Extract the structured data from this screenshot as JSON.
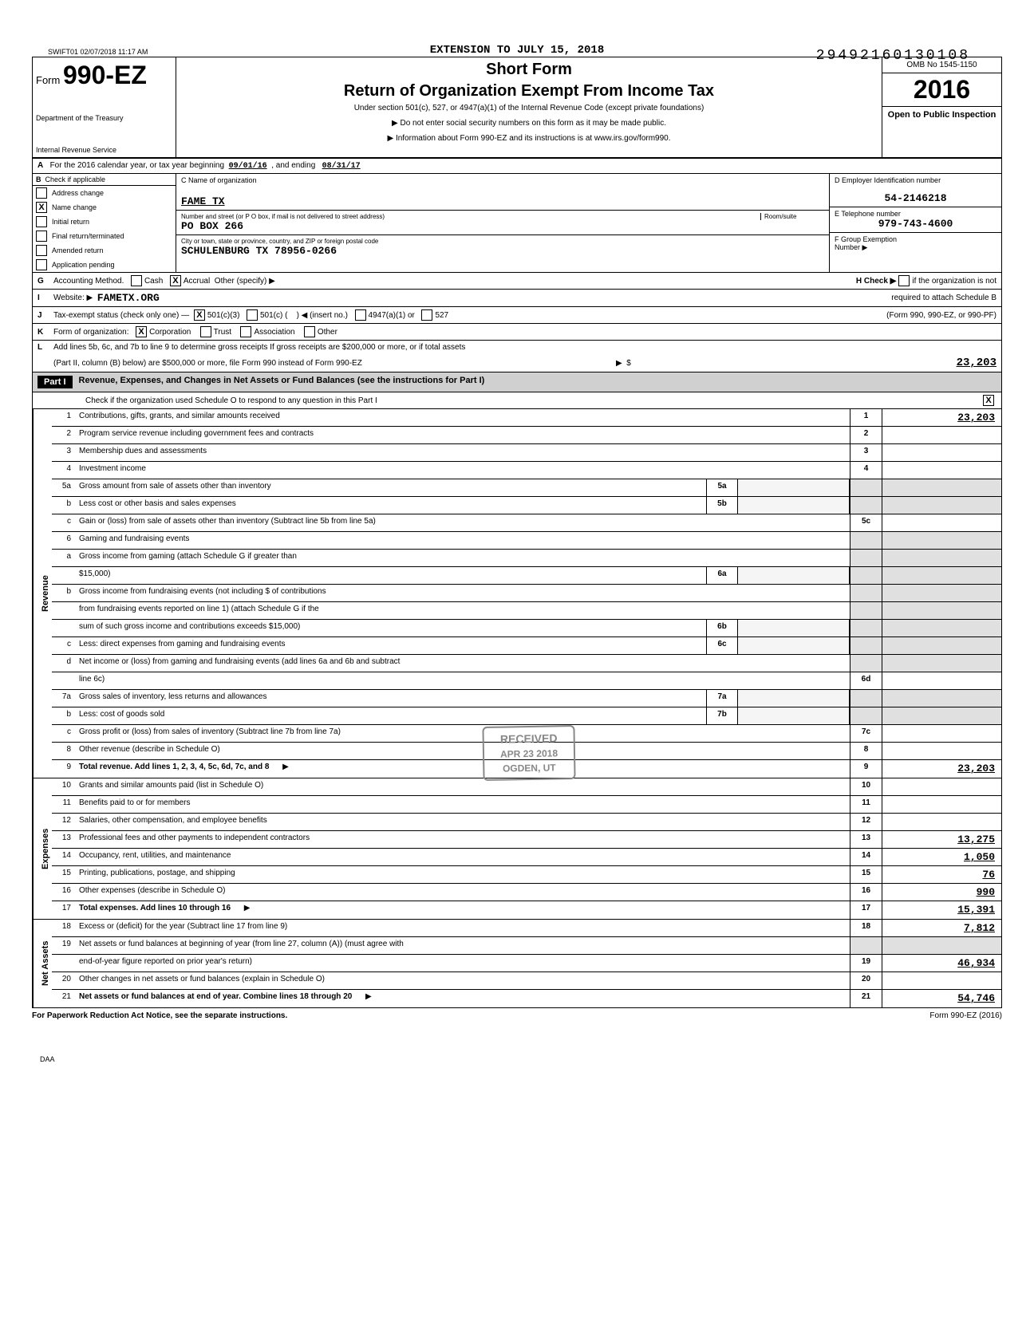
{
  "header": {
    "stamp": "SWIFT01 02/07/2018 11:17 AM",
    "doc_number": "29492160130108",
    "extension": "EXTENSION TO JULY 15, 2018"
  },
  "form": {
    "prefix": "Form",
    "number": "990-EZ",
    "short": "Short Form",
    "title": "Return of Organization Exempt From Income Tax",
    "subtitle": "Under section 501(c), 527, or 4947(a)(1) of the Internal Revenue Code (except private foundations)",
    "arrow1": "▶ Do not enter social security numbers on this form as it may be made public.",
    "arrow2": "▶ Information about Form 990-EZ and its instructions is at www.irs.gov/form990.",
    "dept": "Department of the Treasury",
    "irs": "Internal Revenue Service",
    "omb": "OMB No 1545-1150",
    "year": "2016",
    "inspection": "Open to Public Inspection"
  },
  "rowA": {
    "text": "For the 2016 calendar year, or tax year beginning",
    "begin": "09/01/16",
    "mid": ", and ending",
    "end": "08/31/17"
  },
  "sectionB": {
    "header": "Check if applicable",
    "items": [
      "Address change",
      "Name change",
      "Initial return",
      "Final return/terminated",
      "Amended return",
      "Application pending"
    ],
    "checked": [
      false,
      true,
      false,
      false,
      false,
      false
    ]
  },
  "sectionC": {
    "name_label": "C  Name of organization",
    "name": "FAME TX",
    "addr_label": "Number and street (or P O box, if mail is not delivered to street address)",
    "room_label": "Room/suite",
    "addr": "PO BOX 266",
    "city_label": "City or town, state or province, country, and ZIP or foreign postal code",
    "city": "SCHULENBURG          TX 78956-0266"
  },
  "sectionD": {
    "ein_label": "D  Employer Identification number",
    "ein": "54-2146218",
    "tel_label": "E  Telephone number",
    "tel": "979-743-4600",
    "grp_label": "F  Group Exemption",
    "grp_label2": "Number  ▶"
  },
  "rowG": {
    "letter": "G",
    "text": "Accounting Method.",
    "cash": "Cash",
    "accrual": "Accrual",
    "other": "Other (specify) ▶",
    "h_text": "H  Check ▶",
    "h_text2": "if the organization is not"
  },
  "rowI": {
    "letter": "I",
    "text": "Website: ▶",
    "value": "FAMETX.ORG",
    "h_text": "required to attach Schedule B"
  },
  "rowJ": {
    "letter": "J",
    "text": "Tax-exempt status (check only one) —",
    "opts": [
      "501(c)(3)",
      "501(c) (",
      ") ◀ (insert no.)",
      "4947(a)(1) or",
      "527"
    ],
    "h_text": "(Form 990, 990-EZ, or 990-PF)"
  },
  "rowK": {
    "letter": "K",
    "text": "Form of organization:",
    "opts": [
      "Corporation",
      "Trust",
      "Association",
      "Other"
    ]
  },
  "rowL": {
    "letter": "L",
    "text1": "Add lines 5b, 6c, and 7b to line 9 to determine gross receipts  If gross receipts are $200,000 or more, or if total assets",
    "text2": "(Part II, column (B) below) are $500,000 or more, file Form 990 instead of Form 990-EZ",
    "amt": "23,203"
  },
  "part1": {
    "label": "Part I",
    "title": "Revenue, Expenses, and Changes in Net Assets or Fund Balances (see the instructions for Part I)",
    "check": "Check if the organization used Schedule O to respond to any question in this Part I"
  },
  "sections": {
    "revenue": "Revenue",
    "expenses": "Expenses",
    "netassets": "Net Assets"
  },
  "lines": [
    {
      "n": "1",
      "d": "Contributions, gifts, grants, and similar amounts received",
      "r": "1",
      "a": "23,203"
    },
    {
      "n": "2",
      "d": "Program service revenue including government fees and contracts",
      "r": "2",
      "a": ""
    },
    {
      "n": "3",
      "d": "Membership dues and assessments",
      "r": "3",
      "a": ""
    },
    {
      "n": "4",
      "d": "Investment income",
      "r": "4",
      "a": ""
    },
    {
      "n": "5a",
      "d": "Gross amount from sale of assets other than inventory",
      "m": "5a",
      "mv": ""
    },
    {
      "n": "b",
      "d": "Less  cost or other basis and sales expenses",
      "m": "5b",
      "mv": ""
    },
    {
      "n": "c",
      "d": "Gain or (loss) from sale of assets other than inventory (Subtract line 5b from line 5a)",
      "r": "5c",
      "a": ""
    },
    {
      "n": "6",
      "d": "Gaming and fundraising events"
    },
    {
      "n": "a",
      "d": "Gross income from gaming (attach Schedule G if greater than"
    },
    {
      "n": "",
      "d": "$15,000)",
      "m": "6a",
      "mv": ""
    },
    {
      "n": "b",
      "d": "Gross income from fundraising events (not including  $                              of contributions"
    },
    {
      "n": "",
      "d": "from fundraising events reported on line 1) (attach Schedule G if the"
    },
    {
      "n": "",
      "d": "sum of such gross income and contributions exceeds $15,000)",
      "m": "6b",
      "mv": ""
    },
    {
      "n": "c",
      "d": "Less: direct expenses from gaming and fundraising events",
      "m": "6c",
      "mv": ""
    },
    {
      "n": "d",
      "d": "Net income or (loss) from gaming and fundraising events (add lines 6a and 6b and subtract"
    },
    {
      "n": "",
      "d": "line 6c)",
      "r": "6d",
      "a": ""
    },
    {
      "n": "7a",
      "d": "Gross sales of inventory, less returns and allowances",
      "m": "7a",
      "mv": ""
    },
    {
      "n": "b",
      "d": "Less: cost of goods sold",
      "m": "7b",
      "mv": ""
    },
    {
      "n": "c",
      "d": "Gross profit or (loss) from sales of inventory (Subtract line 7b from line 7a)",
      "r": "7c",
      "a": ""
    },
    {
      "n": "8",
      "d": "Other revenue (describe in Schedule O)",
      "r": "8",
      "a": ""
    },
    {
      "n": "9",
      "d": "Total revenue. Add lines 1, 2, 3, 4, 5c, 6d, 7c, and 8",
      "r": "9",
      "a": "23,203",
      "arrow": true
    },
    {
      "n": "10",
      "d": "Grants and similar amounts paid (list in Schedule O)",
      "r": "10",
      "a": ""
    },
    {
      "n": "11",
      "d": "Benefits paid to or for members",
      "r": "11",
      "a": ""
    },
    {
      "n": "12",
      "d": "Salaries, other compensation, and employee benefits",
      "r": "12",
      "a": ""
    },
    {
      "n": "13",
      "d": "Professional fees and other payments to independent contractors",
      "r": "13",
      "a": "13,275"
    },
    {
      "n": "14",
      "d": "Occupancy, rent, utilities, and maintenance",
      "r": "14",
      "a": "1,050"
    },
    {
      "n": "15",
      "d": "Printing, publications, postage, and shipping",
      "r": "15",
      "a": "76"
    },
    {
      "n": "16",
      "d": "Other expenses (describe in Schedule O)",
      "r": "16",
      "a": "990"
    },
    {
      "n": "17",
      "d": "Total expenses. Add lines 10 through 16",
      "r": "17",
      "a": "15,391",
      "arrow": true
    },
    {
      "n": "18",
      "d": "Excess or (deficit) for the year (Subtract line 17 from line 9)",
      "r": "18",
      "a": "7,812"
    },
    {
      "n": "19",
      "d": "Net assets or fund balances at beginning of year (from line 27, column (A)) (must agree with"
    },
    {
      "n": "",
      "d": "end-of-year figure reported on prior year's return)",
      "r": "19",
      "a": "46,934"
    },
    {
      "n": "20",
      "d": "Other changes in net assets or fund balances (explain in Schedule O)",
      "r": "20",
      "a": ""
    },
    {
      "n": "21",
      "d": "Net assets or fund balances at end of year. Combine lines 18 through 20",
      "r": "21",
      "a": "54,746",
      "arrow": true
    }
  ],
  "footer": {
    "left": "For Paperwork Reduction Act Notice, see the separate instructions.",
    "right": "Form 990-EZ (2016)",
    "daa": "DAA"
  },
  "stamps": {
    "received": "RECEIVED",
    "date": "APR 23 2018",
    "ogden": "OGDEN, UT"
  }
}
